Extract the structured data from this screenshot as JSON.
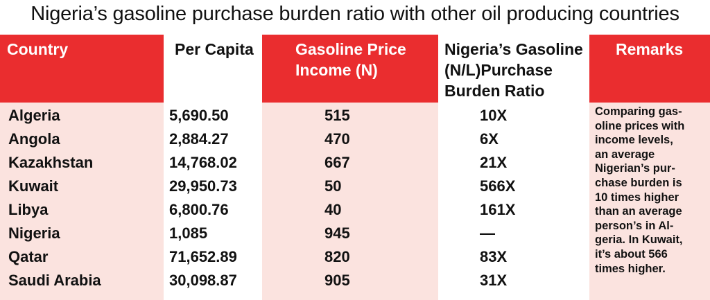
{
  "title": "Nigeria’s gasoline purchase burden ratio with other oil producing countries",
  "headers": {
    "country": "Country",
    "income": "Per Capita",
    "price_line1": "Gasoline Price",
    "price_line2": "Income (N)",
    "ratio_line1": "Nigeria’s Gasoline",
    "ratio_line2": "(N/L)Purchase",
    "ratio_line3": "Burden Ratio",
    "remarks": "Remarks"
  },
  "rows": [
    {
      "country": "Algeria",
      "income": "5,690.50",
      "price": "515",
      "ratio": "10X"
    },
    {
      "country": "Angola",
      "income": "2,884.27",
      "price": "470",
      "ratio": "6X"
    },
    {
      "country": "Kazakhstan",
      "income": "14,768.02",
      "price": "667",
      "ratio": "21X"
    },
    {
      "country": "Kuwait",
      "income": "29,950.73",
      "price": "50",
      "ratio": "566X"
    },
    {
      "country": "Libya",
      "income": "6,800.76",
      "price": "40",
      "ratio": "161X"
    },
    {
      "country": "Nigeria",
      "income": "1,085",
      "price": "945",
      "ratio": "—"
    },
    {
      "country": "Qatar",
      "income": "71,652.89",
      "price": "820",
      "ratio": "83X"
    },
    {
      "country": "Saudi Arabia",
      "income": "30,098.87",
      "price": "905",
      "ratio": "31X"
    }
  ],
  "remarks": "Comparing gas-\noline prices with\nincome levels,\nan average\nNigerian’s pur-\nchase burden is\n10 times higher\nthan an average\nperson’s in Al-\ngeria. In Kuwait,\nit’s about 566\ntimes higher.",
  "colors": {
    "header_red": "#ea2d2f",
    "body_pink": "#fbe3df",
    "text": "#111111"
  }
}
